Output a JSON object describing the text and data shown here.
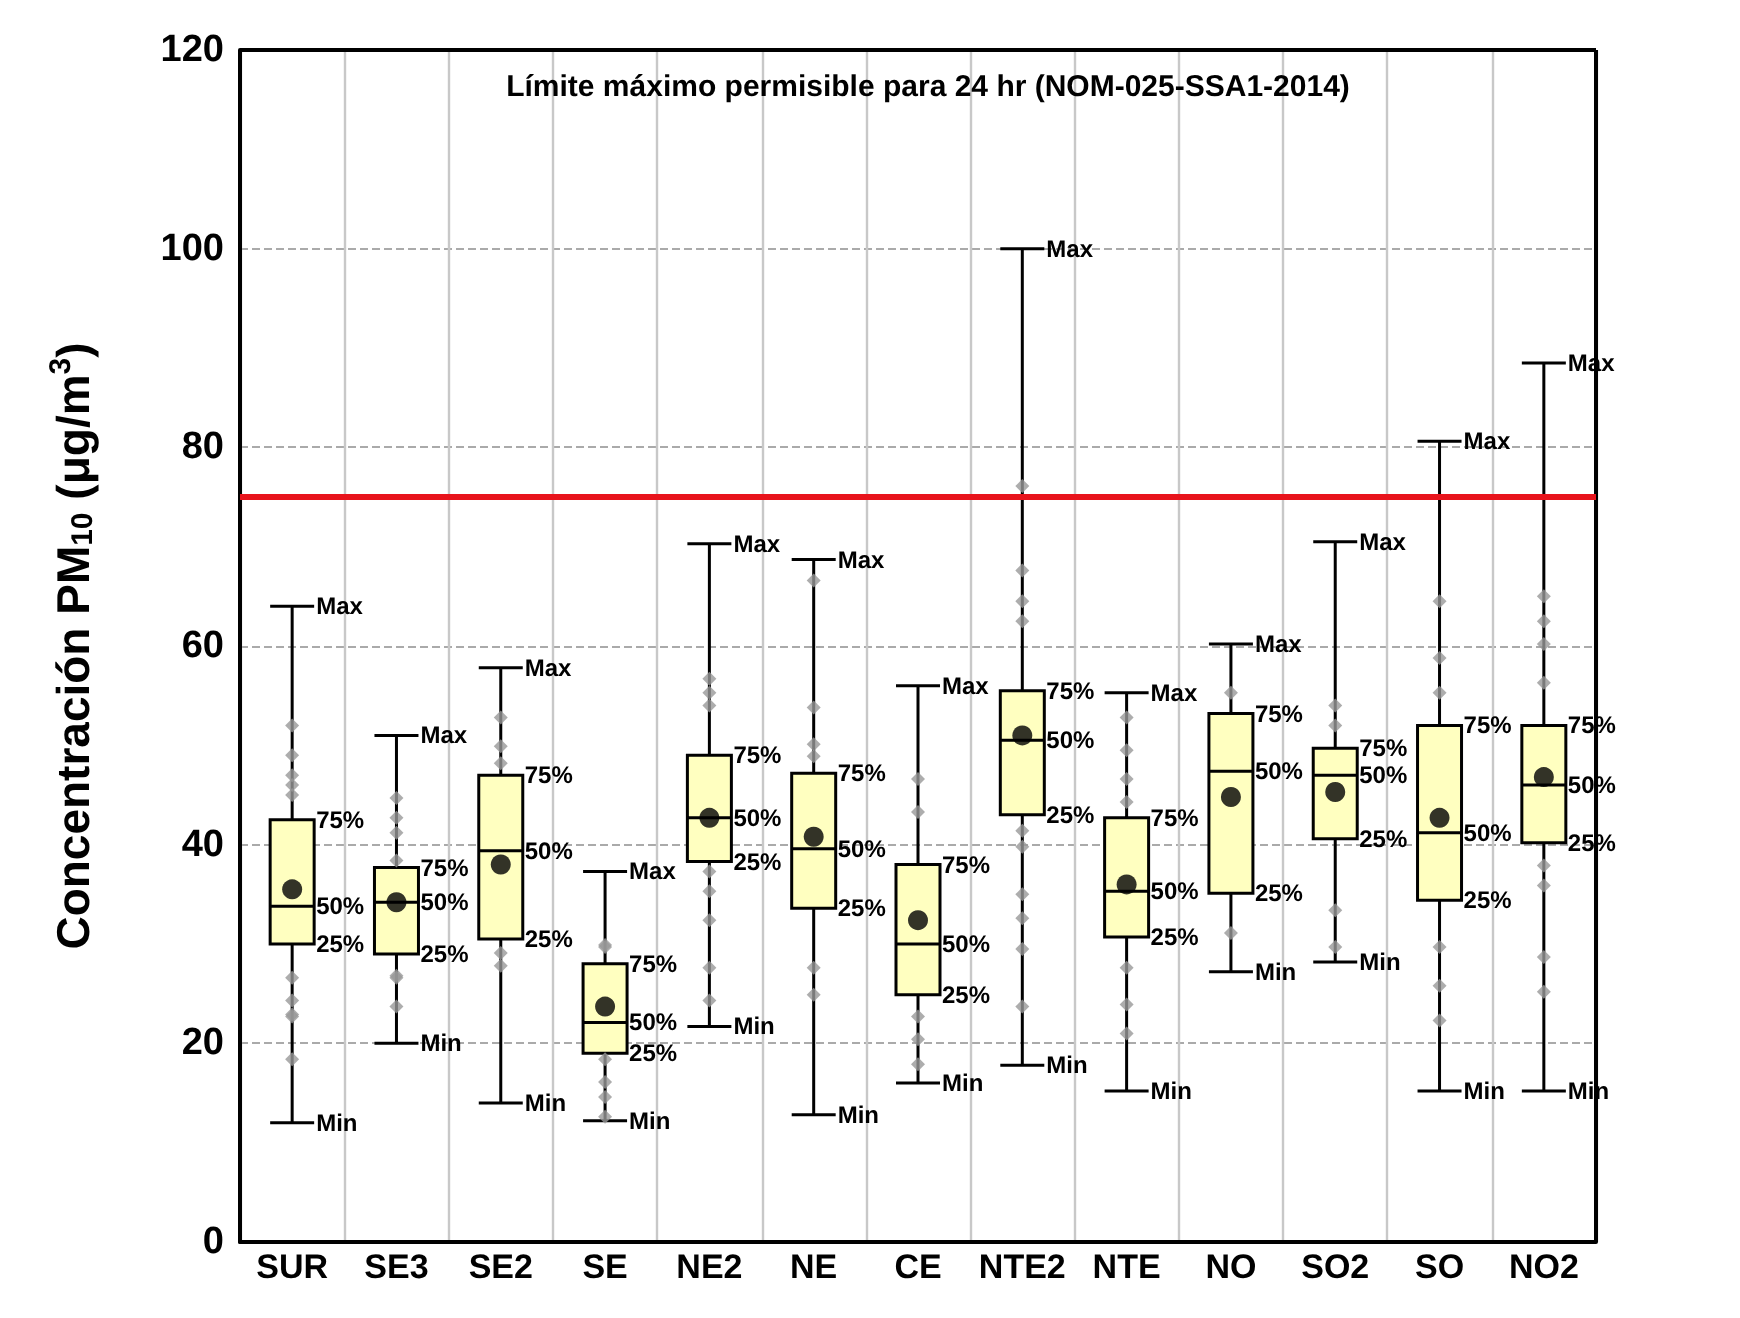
{
  "chart_data": {
    "type": "box",
    "title": "Límite máximo permisible para 24 hr (NOM-025-SSA1-2014)",
    "ylabel": "Concentración PM$_{10}$ (μg/m$^{3}$)",
    "categories": [
      "SUR",
      "SE3",
      "SE2",
      "SE",
      "NE2",
      "NE",
      "CE",
      "NTE2",
      "NTE",
      "NO",
      "SO2",
      "SO",
      "NO2"
    ],
    "ylim": [
      0,
      120
    ],
    "yticks": [
      0,
      20,
      40,
      60,
      80,
      100,
      120
    ],
    "grid": true,
    "ref_lines": [
      {
        "axis": "y",
        "value": 75,
        "color": "#e8141c",
        "line_style": "solid"
      }
    ],
    "series": [
      {
        "type": "box",
        "color": "#ffffc0",
        "boxes": [
          {
            "low": 12,
            "q1": 30,
            "median": 33.8,
            "q3": 42.5,
            "high": 64
          },
          {
            "low": 20,
            "q1": 29,
            "median": 34.2,
            "q3": 37.7,
            "high": 51
          },
          {
            "low": 14,
            "q1": 30.5,
            "median": 39.4,
            "q3": 47,
            "high": 57.8
          },
          {
            "low": 12.2,
            "q1": 19,
            "median": 22.1,
            "q3": 28,
            "high": 37.3
          },
          {
            "low": 21.7,
            "q1": 38.3,
            "median": 42.7,
            "q3": 49,
            "high": 70.3
          },
          {
            "low": 12.8,
            "q1": 33.6,
            "median": 39.6,
            "q3": 47.2,
            "high": 68.7
          },
          {
            "low": 16,
            "q1": 24.9,
            "median": 30,
            "q3": 38,
            "high": 56
          },
          {
            "low": 17.8,
            "q1": 43,
            "median": 50.5,
            "q3": 55.5,
            "high": 100
          },
          {
            "low": 15.2,
            "q1": 30.7,
            "median": 35.3,
            "q3": 42.7,
            "high": 55.3
          },
          {
            "low": 27.2,
            "q1": 35.1,
            "median": 47.4,
            "q3": 53.2,
            "high": 60.2
          },
          {
            "low": 28.2,
            "q1": 40.6,
            "median": 47,
            "q3": 49.7,
            "high": 70.5
          },
          {
            "low": 15.2,
            "q1": 34.4,
            "median": 41.2,
            "q3": 52,
            "high": 80.6
          },
          {
            "low": 15.2,
            "q1": 40.2,
            "median": 46,
            "q3": 52,
            "high": 88.5
          }
        ]
      },
      {
        "type": "scatter",
        "marker": "diamond",
        "color": "#999999",
        "x": [
          "SUR",
          "SUR",
          "SUR",
          "SUR",
          "SUR",
          "SUR",
          "SUR",
          "SUR",
          "SUR",
          "SUR",
          "SE3",
          "SE3",
          "SE3",
          "SE3",
          "SE3",
          "SE3",
          "SE3",
          "SE2",
          "SE2",
          "SE2",
          "SE2",
          "SE2",
          "SE",
          "SE",
          "SE",
          "SE",
          "SE",
          "SE",
          "NE2",
          "NE2",
          "NE2",
          "NE2",
          "NE2",
          "NE2",
          "NE2",
          "NE2",
          "NE",
          "NE",
          "NE",
          "NE",
          "NE",
          "NE",
          "CE",
          "CE",
          "CE",
          "CE",
          "CE",
          "NTE2",
          "NTE2",
          "NTE2",
          "NTE2",
          "NTE2",
          "NTE2",
          "NTE2",
          "NTE2",
          "NTE2",
          "NTE2",
          "NTE",
          "NTE",
          "NTE",
          "NTE",
          "NTE",
          "NTE",
          "NTE",
          "NO",
          "NO",
          "SO2",
          "SO2",
          "SO2",
          "SO2",
          "SO",
          "SO",
          "SO",
          "SO",
          "SO",
          "SO",
          "NO2",
          "NO2",
          "NO2",
          "NO2",
          "NO2",
          "NO2",
          "NO2",
          "NO2"
        ],
        "values": [
          52,
          49,
          47,
          46,
          45,
          26.6,
          24.3,
          22.9,
          22.7,
          18.4,
          44.7,
          42.7,
          41.2,
          38.4,
          26.8,
          26.6,
          23.7,
          52.8,
          49.9,
          48.2,
          29.1,
          27.8,
          29.9,
          29.7,
          18.4,
          16.1,
          14.6,
          12.6,
          56.7,
          55.3,
          54,
          37.3,
          35.3,
          32.4,
          27.6,
          24.3,
          66.6,
          53.8,
          50.1,
          48.9,
          27.6,
          24.9,
          46.6,
          43.3,
          22.7,
          20.4,
          17.9,
          76.1,
          67.6,
          64.5,
          62.5,
          41.4,
          39.8,
          35,
          32.6,
          29.5,
          23.7,
          52.8,
          49.5,
          46.6,
          44.3,
          27.6,
          23.9,
          21,
          55.3,
          31.1,
          54,
          52,
          33.4,
          29.7,
          64.5,
          58.8,
          55.3,
          29.7,
          25.8,
          22.3,
          65,
          62.5,
          60.2,
          56.3,
          37.9,
          35.9,
          28.7,
          25.2
        ]
      },
      {
        "type": "scatter",
        "marker": "circle",
        "color": "#000000",
        "x": [
          "SUR",
          "SE3",
          "SE2",
          "SE",
          "NE2",
          "NE",
          "CE",
          "NTE2",
          "NTE",
          "NO",
          "SO2",
          "SO",
          "NO2"
        ],
        "values": [
          35.5,
          34.2,
          38,
          23.7,
          42.7,
          40.8,
          32.4,
          51,
          36,
          44.8,
          45.3,
          42.7,
          46.8
        ]
      }
    ],
    "annotations": [
      {
        "text": "Max",
        "x": "SUR",
        "y": 64
      },
      {
        "text": "75%",
        "x": "SUR",
        "y": 42.5
      },
      {
        "text": "50%",
        "x": "SUR",
        "y": 33.8
      },
      {
        "text": "25%",
        "x": "SUR",
        "y": 30
      },
      {
        "text": "Min",
        "x": "SUR",
        "y": 12
      },
      {
        "text": "Max",
        "x": "SE3",
        "y": 51
      },
      {
        "text": "75%",
        "x": "SE3",
        "y": 37.7
      },
      {
        "text": "50%",
        "x": "SE3",
        "y": 34.2
      },
      {
        "text": "25%",
        "x": "SE3",
        "y": 29
      },
      {
        "text": "Min",
        "x": "SE3",
        "y": 20
      },
      {
        "text": "Max",
        "x": "SE2",
        "y": 57.8
      },
      {
        "text": "75%",
        "x": "SE2",
        "y": 47
      },
      {
        "text": "50%",
        "x": "SE2",
        "y": 39.4
      },
      {
        "text": "25%",
        "x": "SE2",
        "y": 30.5
      },
      {
        "text": "Min",
        "x": "SE2",
        "y": 14
      },
      {
        "text": "Max",
        "x": "SE",
        "y": 37.3
      },
      {
        "text": "75%",
        "x": "SE",
        "y": 28
      },
      {
        "text": "50%",
        "x": "SE",
        "y": 22.1
      },
      {
        "text": "25%",
        "x": "SE",
        "y": 19
      },
      {
        "text": "Min",
        "x": "SE",
        "y": 12.2
      },
      {
        "text": "Max",
        "x": "NE2",
        "y": 70.3
      },
      {
        "text": "75%",
        "x": "NE2",
        "y": 49
      },
      {
        "text": "50%",
        "x": "NE2",
        "y": 42.7
      },
      {
        "text": "25%",
        "x": "NE2",
        "y": 38.3
      },
      {
        "text": "Min",
        "x": "NE2",
        "y": 21.7
      },
      {
        "text": "Max",
        "x": "NE",
        "y": 68.7
      },
      {
        "text": "75%",
        "x": "NE",
        "y": 47.2
      },
      {
        "text": "50%",
        "x": "NE",
        "y": 39.6
      },
      {
        "text": "25%",
        "x": "NE",
        "y": 33.6
      },
      {
        "text": "Min",
        "x": "NE",
        "y": 12.8
      },
      {
        "text": "Max",
        "x": "CE",
        "y": 56
      },
      {
        "text": "75%",
        "x": "CE",
        "y": 38
      },
      {
        "text": "50%",
        "x": "CE",
        "y": 30
      },
      {
        "text": "25%",
        "x": "CE",
        "y": 24.9
      },
      {
        "text": "Min",
        "x": "CE",
        "y": 16
      },
      {
        "text": "Max",
        "x": "NTE2",
        "y": 100
      },
      {
        "text": "75%",
        "x": "NTE2",
        "y": 55.5
      },
      {
        "text": "50%",
        "x": "NTE2",
        "y": 50.5
      },
      {
        "text": "25%",
        "x": "NTE2",
        "y": 43
      },
      {
        "text": "Min",
        "x": "NTE2",
        "y": 17.8
      },
      {
        "text": "Max",
        "x": "NTE",
        "y": 55.3
      },
      {
        "text": "75%",
        "x": "NTE",
        "y": 42.7
      },
      {
        "text": "50%",
        "x": "NTE",
        "y": 35.3
      },
      {
        "text": "25%",
        "x": "NTE",
        "y": 30.7
      },
      {
        "text": "Min",
        "x": "NTE",
        "y": 15.2
      },
      {
        "text": "Max",
        "x": "NO",
        "y": 60.2
      },
      {
        "text": "75%",
        "x": "NO",
        "y": 53.2
      },
      {
        "text": "50%",
        "x": "NO",
        "y": 47.4
      },
      {
        "text": "25%",
        "x": "NO",
        "y": 35.1
      },
      {
        "text": "Min",
        "x": "NO",
        "y": 27.2
      },
      {
        "text": "Max",
        "x": "SO2",
        "y": 70.5
      },
      {
        "text": "75%",
        "x": "SO2",
        "y": 49.7
      },
      {
        "text": "50%",
        "x": "SO2",
        "y": 47
      },
      {
        "text": "25%",
        "x": "SO2",
        "y": 40.6
      },
      {
        "text": "Min",
        "x": "SO2",
        "y": 28.2
      },
      {
        "text": "Max",
        "x": "SO",
        "y": 80.6
      },
      {
        "text": "75%",
        "x": "SO",
        "y": 52
      },
      {
        "text": "50%",
        "x": "SO",
        "y": 41.2
      },
      {
        "text": "25%",
        "x": "SO",
        "y": 34.4
      },
      {
        "text": "Min",
        "x": "SO",
        "y": 15.2
      },
      {
        "text": "Max",
        "x": "NO2",
        "y": 88.5
      },
      {
        "text": "75%",
        "x": "NO2",
        "y": 52
      },
      {
        "text": "50%",
        "x": "NO2",
        "y": 46
      },
      {
        "text": "25%",
        "x": "NO2",
        "y": 40.2
      },
      {
        "text": "Min",
        "x": "NO2",
        "y": 15.2
      }
    ]
  }
}
